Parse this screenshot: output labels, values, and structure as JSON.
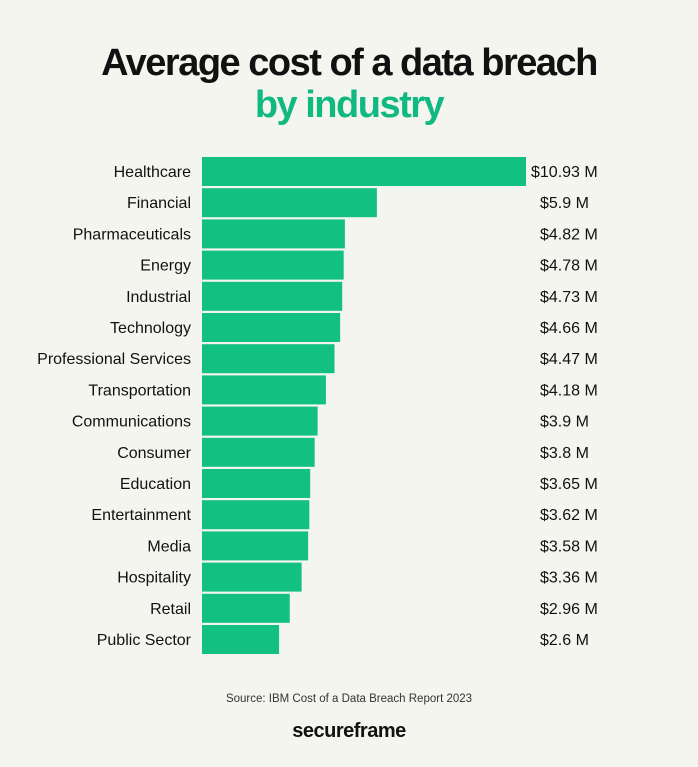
{
  "title": {
    "line1": "Average cost of a data breach",
    "line2": "by industry"
  },
  "colors": {
    "accent": "#10b981",
    "bar": "#13c084",
    "background": "#f5f5f0",
    "text": "#111111"
  },
  "chart_data": {
    "type": "bar",
    "orientation": "horizontal",
    "title": "Average cost of a data breach by industry",
    "categories": [
      "Healthcare",
      "Financial",
      "Pharmaceuticals",
      "Energy",
      "Industrial",
      "Technology",
      "Professional Services",
      "Transportation",
      "Communications",
      "Consumer",
      "Education",
      "Entertainment",
      "Media",
      "Hospitality",
      "Retail",
      "Public Sector"
    ],
    "values": [
      10.93,
      5.9,
      4.82,
      4.78,
      4.73,
      4.66,
      4.47,
      4.18,
      3.9,
      3.8,
      3.65,
      3.62,
      3.58,
      3.36,
      2.96,
      2.6
    ],
    "value_labels": [
      "$10.93 M",
      "$5.9 M",
      "$4.82 M",
      "$4.78 M",
      "$4.73 M",
      "$4.66 M",
      "$4.47 M",
      "$4.18 M",
      "$3.9 M",
      "$3.8 M",
      "$3.65 M",
      "$3.62 M",
      "$3.58 M",
      "$3.36 M",
      "$2.96 M",
      "$2.6 M"
    ],
    "xlim": [
      0,
      10.93
    ],
    "grid": false,
    "legend": "none"
  },
  "footer": {
    "source": "Source: IBM Cost of a Data Breach Report 2023",
    "brand": "secureframe"
  }
}
